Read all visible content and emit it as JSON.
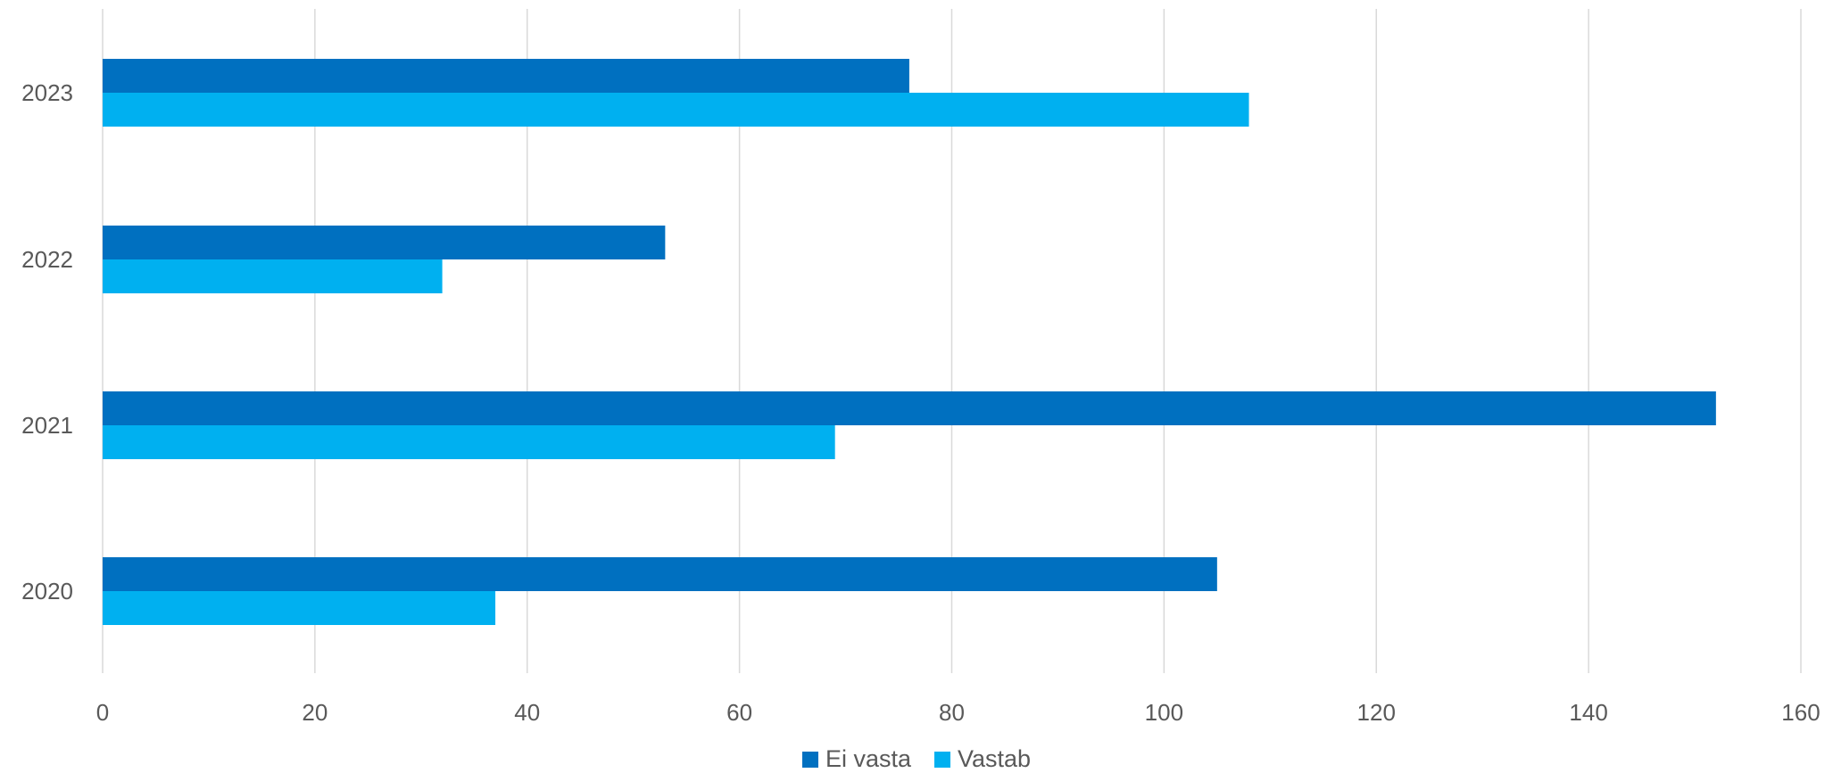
{
  "chart_data": {
    "type": "bar",
    "orientation": "horizontal",
    "categories": [
      "2020",
      "2021",
      "2022",
      "2023"
    ],
    "series": [
      {
        "name": "Ei vasta",
        "color": "#0070C0",
        "values": [
          105,
          152,
          53,
          76
        ]
      },
      {
        "name": "Vastab",
        "color": "#00B0F0",
        "values": [
          37,
          69,
          32,
          108
        ]
      }
    ],
    "xlim": [
      0,
      160
    ],
    "xticks": [
      "0",
      "20",
      "40",
      "60",
      "80",
      "100",
      "120",
      "140",
      "160"
    ],
    "grid": true,
    "legend_position": "bottom"
  }
}
